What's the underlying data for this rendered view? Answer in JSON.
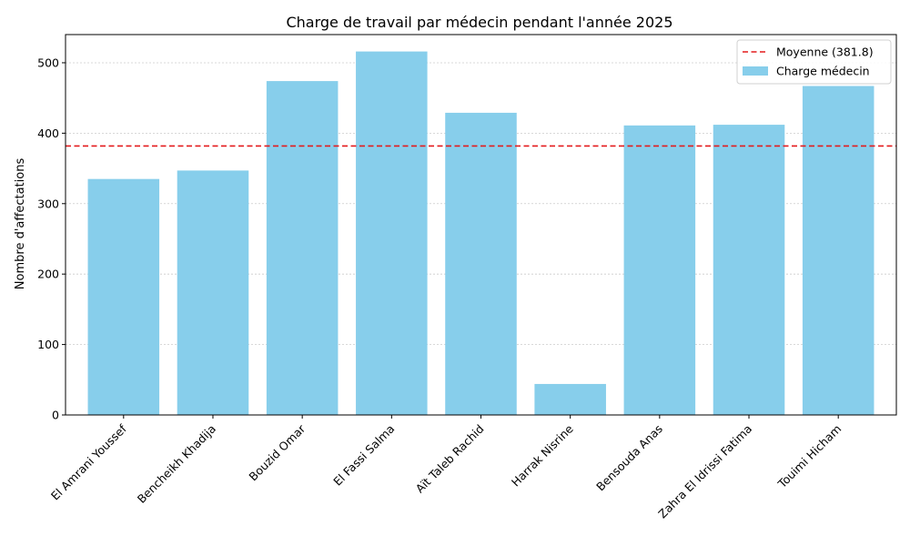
{
  "chart_data": {
    "type": "bar",
    "title": "Charge de travail par médecin pendant l'année 2025",
    "xlabel": "",
    "ylabel": "Nombre d'affectations",
    "categories": [
      "El Amrani Youssef",
      "Bencheikh Khadija",
      "Bouzid Omar",
      "El Fassi Salma",
      "Aït Taleb Rachid",
      "Harrak Nisrine",
      "Bensouda Anas",
      "Zahra El Idrissi Fatima",
      "Touimi Hicham"
    ],
    "series": [
      {
        "name": "Charge médecin",
        "values": [
          335,
          347,
          474,
          516,
          429,
          44,
          411,
          412,
          467
        ],
        "color": "#87ceeb"
      }
    ],
    "reference_line": {
      "label": "Moyenne (381.8)",
      "value": 381.8,
      "color": "#e41a1c",
      "style": "dashed"
    },
    "ylim": [
      0,
      540
    ],
    "yticks": [
      0,
      100,
      200,
      300,
      400,
      500
    ],
    "grid": {
      "y": true,
      "x": false,
      "style": "dotted"
    },
    "legend": {
      "placement": "top-right"
    }
  }
}
